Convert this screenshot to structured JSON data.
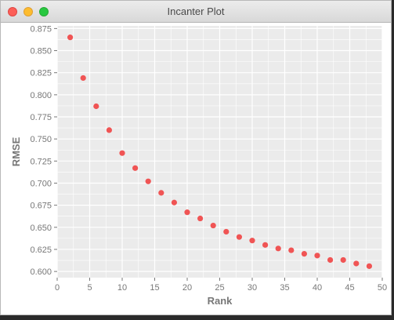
{
  "window": {
    "title": "Incanter Plot"
  },
  "colors": {
    "plot_background": "#ebebeb",
    "gridline": "#ffffff",
    "point": "#f05454",
    "axis_text": "#777777"
  },
  "chart_data": {
    "type": "scatter",
    "title": "",
    "xlabel": "Rank",
    "ylabel": "RMSE",
    "xlim": [
      0,
      50
    ],
    "ylim": [
      0.593,
      0.878
    ],
    "xticks": [
      0,
      5,
      10,
      15,
      20,
      25,
      30,
      35,
      40,
      45,
      50
    ],
    "yticks": [
      0.6,
      0.625,
      0.65,
      0.675,
      0.7,
      0.725,
      0.75,
      0.775,
      0.8,
      0.825,
      0.85,
      0.875
    ],
    "grid": true,
    "legend": "none",
    "x": [
      2,
      4,
      6,
      8,
      10,
      12,
      14,
      16,
      18,
      20,
      22,
      24,
      26,
      28,
      30,
      32,
      34,
      36,
      38,
      40,
      42,
      44,
      46,
      48
    ],
    "y": [
      0.865,
      0.819,
      0.787,
      0.76,
      0.734,
      0.717,
      0.702,
      0.689,
      0.678,
      0.667,
      0.66,
      0.652,
      0.645,
      0.639,
      0.635,
      0.63,
      0.626,
      0.624,
      0.62,
      0.618,
      0.613,
      0.613,
      0.609,
      0.606
    ]
  }
}
